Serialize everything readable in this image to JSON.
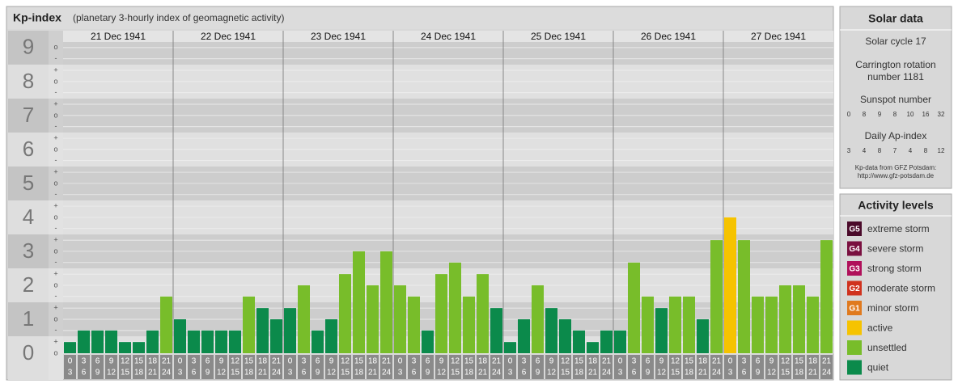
{
  "header": {
    "title": "Kp-index",
    "subtitle": "(planetary 3-hourly index of geomagnetic activity)"
  },
  "chart_data": {
    "type": "bar",
    "days": [
      "21 Dec 1941",
      "22 Dec 1941",
      "23 Dec 1941",
      "24 Dec 1941",
      "25 Dec 1941",
      "26 Dec 1941",
      "27 Dec 1941"
    ],
    "hour_labels": [
      [
        "0",
        "3"
      ],
      [
        "3",
        "6"
      ],
      [
        "6",
        "9"
      ],
      [
        "9",
        "12"
      ],
      [
        "12",
        "15"
      ],
      [
        "15",
        "18"
      ],
      [
        "18",
        "21"
      ],
      [
        "21",
        "24"
      ]
    ],
    "values": [
      0.33,
      0.67,
      0.67,
      0.67,
      0.33,
      0.33,
      0.67,
      1.67,
      1,
      0.67,
      0.67,
      0.67,
      0.67,
      1.67,
      1.33,
      1,
      1.33,
      2,
      0.67,
      1,
      2.33,
      3,
      2,
      3,
      2,
      1.67,
      0.67,
      2.33,
      2.67,
      1.67,
      2.33,
      1.33,
      0.33,
      1,
      2,
      1.33,
      1,
      0.67,
      0.33,
      0.67,
      0.67,
      2.67,
      1.67,
      1.33,
      1.67,
      1.67,
      1,
      3.33,
      4,
      3.33,
      1.67,
      1.67,
      2,
      2,
      1.67,
      3.33
    ],
    "colors": [
      "#0b8a4b",
      "#0b8a4b",
      "#0b8a4b",
      "#0b8a4b",
      "#0b8a4b",
      "#0b8a4b",
      "#0b8a4b",
      "#78bd2a",
      "#0b8a4b",
      "#0b8a4b",
      "#0b8a4b",
      "#0b8a4b",
      "#0b8a4b",
      "#78bd2a",
      "#0b8a4b",
      "#0b8a4b",
      "#0b8a4b",
      "#78bd2a",
      "#0b8a4b",
      "#0b8a4b",
      "#78bd2a",
      "#78bd2a",
      "#78bd2a",
      "#78bd2a",
      "#78bd2a",
      "#78bd2a",
      "#0b8a4b",
      "#78bd2a",
      "#78bd2a",
      "#78bd2a",
      "#78bd2a",
      "#0b8a4b",
      "#0b8a4b",
      "#0b8a4b",
      "#78bd2a",
      "#0b8a4b",
      "#0b8a4b",
      "#0b8a4b",
      "#0b8a4b",
      "#0b8a4b",
      "#0b8a4b",
      "#78bd2a",
      "#78bd2a",
      "#0b8a4b",
      "#78bd2a",
      "#78bd2a",
      "#0b8a4b",
      "#78bd2a",
      "#f6c300",
      "#78bd2a",
      "#78bd2a",
      "#78bd2a",
      "#78bd2a",
      "#78bd2a",
      "#78bd2a",
      "#78bd2a"
    ],
    "ylim": [
      0,
      9.33
    ],
    "yticks": [
      0,
      1,
      2,
      3,
      4,
      5,
      6,
      7,
      8,
      9
    ],
    "minor_ticks": [
      {
        "value": 0,
        "label": "o"
      },
      {
        "value": 0.33,
        "label": "+"
      },
      {
        "value": 0.67,
        "label": "-"
      },
      {
        "value": 1,
        "label": "o"
      },
      {
        "value": 1.33,
        "label": "+"
      },
      {
        "value": 1.67,
        "label": "-"
      },
      {
        "value": 2,
        "label": "o"
      },
      {
        "value": 2.33,
        "label": "+"
      },
      {
        "value": 2.67,
        "label": "-"
      },
      {
        "value": 3,
        "label": "o"
      },
      {
        "value": 3.33,
        "label": "+"
      },
      {
        "value": 3.67,
        "label": "-"
      },
      {
        "value": 4,
        "label": "o"
      },
      {
        "value": 4.33,
        "label": "+"
      },
      {
        "value": 4.67,
        "label": "-"
      },
      {
        "value": 5,
        "label": "o"
      },
      {
        "value": 5.33,
        "label": "+"
      },
      {
        "value": 5.67,
        "label": "-"
      },
      {
        "value": 6,
        "label": "o"
      },
      {
        "value": 6.33,
        "label": "+"
      },
      {
        "value": 6.67,
        "label": "-"
      },
      {
        "value": 7,
        "label": "o"
      },
      {
        "value": 7.33,
        "label": "+"
      },
      {
        "value": 7.67,
        "label": "-"
      },
      {
        "value": 8,
        "label": "o"
      },
      {
        "value": 8.33,
        "label": "+"
      },
      {
        "value": 8.67,
        "label": "-"
      },
      {
        "value": 9,
        "label": "o"
      }
    ],
    "grid": true
  },
  "solar": {
    "title": "Solar data",
    "cycle": "Solar cycle 17",
    "rotation": [
      "Carrington rotation",
      "number 1181"
    ],
    "sunspot_title": "Sunspot number",
    "sunspot": [
      0,
      8,
      9,
      8,
      10,
      16,
      32
    ],
    "ap_title": "Daily Ap-index",
    "ap": [
      3,
      4,
      8,
      7,
      4,
      8,
      12
    ],
    "source": [
      "Kp-data from GFZ Potsdam:",
      "http://www.gfz-potsdam.de"
    ]
  },
  "legend": {
    "title": "Activity levels",
    "items": [
      {
        "code": "G5",
        "label": "extreme storm",
        "color": "#4a0a2a"
      },
      {
        "code": "G4",
        "label": "severe storm",
        "color": "#7a1040"
      },
      {
        "code": "G3",
        "label": "strong storm",
        "color": "#b0105a"
      },
      {
        "code": "G2",
        "label": "moderate storm",
        "color": "#d0321e"
      },
      {
        "code": "G1",
        "label": "minor storm",
        "color": "#e07a1e"
      },
      {
        "label": "active",
        "color": "#f6c300"
      },
      {
        "label": "unsettled",
        "color": "#78bd2a"
      },
      {
        "label": "quiet",
        "color": "#0b8a4b"
      }
    ]
  }
}
